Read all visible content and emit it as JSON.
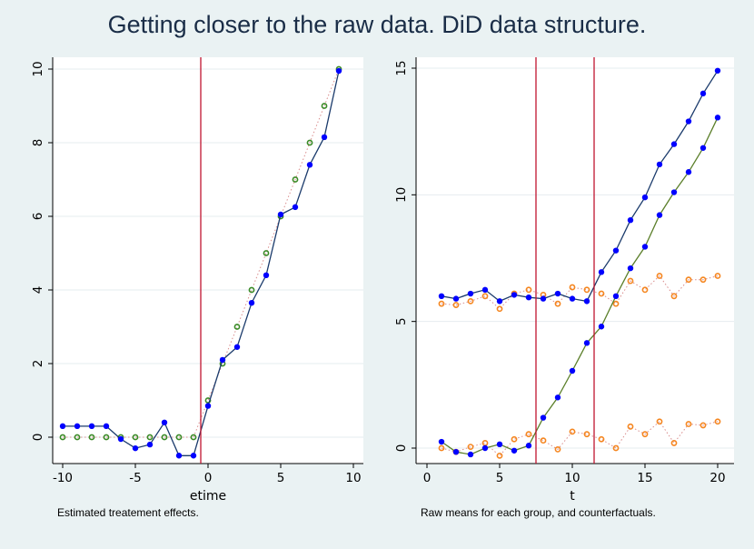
{
  "title": "Getting closer to the raw data.  DiD data structure.",
  "colors": {
    "background": "#eaf2f3",
    "plot_bg": "#ffffff",
    "grid": "#e6ecef",
    "actual_line": "#1a3a6b",
    "actual_marker": "#0000ff",
    "counterfactual_green": "#3a8a26",
    "counterfactual_orange": "#f5861f",
    "treated_line": "#5b7f2a",
    "reference_line": "#c0142f",
    "dotted": "#d98c8c"
  },
  "chart_data": [
    {
      "type": "line",
      "xlabel": "etime",
      "ylabel": "",
      "caption": "Estimated treatement effects.",
      "xlim": [
        -10,
        10
      ],
      "ylim": [
        0,
        10
      ],
      "xticks": [
        "-10",
        "-5",
        "0",
        "5",
        "10"
      ],
      "yticks": [
        "0",
        "2",
        "4",
        "6",
        "8",
        "10"
      ],
      "reference_lines_x": [
        -0.5
      ],
      "x": [
        -10,
        -9,
        -8,
        -7,
        -6,
        -5,
        -4,
        -3,
        -2,
        -1,
        0,
        1,
        2,
        3,
        4,
        5,
        6,
        7,
        8,
        9
      ],
      "series": [
        {
          "style": "solid-filled",
          "values": [
            0.3,
            0.3,
            0.3,
            0.3,
            -0.05,
            -0.3,
            -0.2,
            0.4,
            -0.5,
            -0.5,
            0.85,
            2.1,
            2.45,
            3.65,
            4.4,
            6.05,
            6.25,
            7.4,
            8.15,
            9.95
          ]
        },
        {
          "style": "dotted-hollow",
          "values": [
            0,
            0,
            0,
            0,
            0,
            0,
            0,
            0,
            0,
            0,
            1,
            2,
            3,
            4,
            5,
            6,
            7,
            8,
            9,
            10
          ]
        }
      ]
    },
    {
      "type": "line",
      "xlabel": "t",
      "ylabel": "",
      "caption": "Raw means for each group, and counterfactuals.",
      "xlim": [
        0,
        20
      ],
      "ylim": [
        0,
        15
      ],
      "xticks": [
        "0",
        "5",
        "10",
        "15",
        "20"
      ],
      "yticks": [
        "0",
        "5",
        "10",
        "15"
      ],
      "reference_lines_x": [
        7.5,
        11.5
      ],
      "x": [
        1,
        2,
        3,
        4,
        5,
        6,
        7,
        8,
        9,
        10,
        11,
        12,
        13,
        14,
        15,
        16,
        17,
        18,
        19,
        20
      ],
      "series": [
        {
          "style": "solid-filled",
          "values": [
            6.0,
            5.9,
            6.1,
            6.25,
            5.8,
            6.05,
            5.95,
            5.9,
            6.1,
            5.9,
            5.8,
            6.95,
            7.8,
            9.0,
            9.9,
            11.2,
            12.0,
            12.9,
            14.0,
            14.9
          ]
        },
        {
          "style": "solid-filled-treated",
          "values": [
            0.25,
            -0.15,
            -0.25,
            0.0,
            0.15,
            -0.1,
            0.1,
            1.2,
            2.0,
            3.05,
            4.15,
            4.8,
            6.0,
            7.1,
            7.95,
            9.2,
            10.1,
            10.9,
            11.85,
            13.05
          ]
        },
        {
          "style": "dotted-hollow-orange",
          "values": [
            5.7,
            5.65,
            5.8,
            6.0,
            5.5,
            6.1,
            6.25,
            6.05,
            5.7,
            6.35,
            6.25,
            6.1,
            5.7,
            6.6,
            6.25,
            6.8,
            6.0,
            6.65,
            6.65,
            6.8
          ]
        },
        {
          "style": "dotted-hollow-orange",
          "values": [
            0.0,
            -0.15,
            0.05,
            0.2,
            -0.3,
            0.35,
            0.55,
            0.3,
            -0.05,
            0.65,
            0.55,
            0.35,
            0.0,
            0.85,
            0.55,
            1.05,
            0.2,
            0.95,
            0.9,
            1.05
          ]
        }
      ]
    }
  ]
}
